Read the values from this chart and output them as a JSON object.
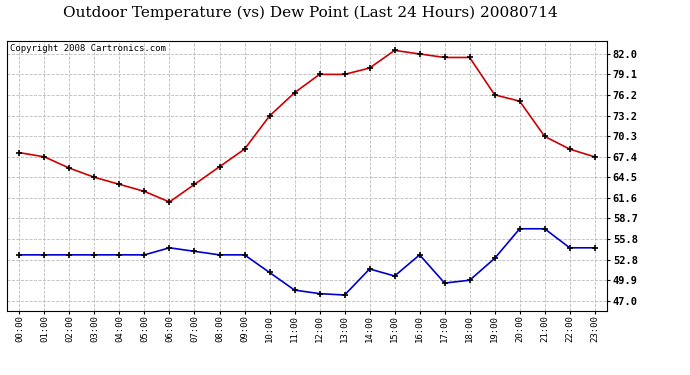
{
  "title": "Outdoor Temperature (vs) Dew Point (Last 24 Hours) 20080714",
  "copyright": "Copyright 2008 Cartronics.com",
  "hours": [
    "00:00",
    "01:00",
    "02:00",
    "03:00",
    "04:00",
    "05:00",
    "06:00",
    "07:00",
    "08:00",
    "09:00",
    "10:00",
    "11:00",
    "12:00",
    "13:00",
    "14:00",
    "15:00",
    "16:00",
    "17:00",
    "18:00",
    "19:00",
    "20:00",
    "21:00",
    "22:00",
    "23:00"
  ],
  "temp": [
    68.0,
    67.4,
    65.8,
    64.5,
    63.5,
    62.5,
    61.0,
    63.5,
    66.0,
    68.5,
    73.2,
    76.5,
    79.1,
    79.1,
    80.0,
    82.5,
    82.0,
    81.5,
    81.5,
    76.2,
    75.3,
    70.3,
    68.5,
    67.4
  ],
  "dew": [
    53.5,
    53.5,
    53.5,
    53.5,
    53.5,
    53.5,
    54.5,
    54.0,
    53.5,
    53.5,
    51.0,
    48.5,
    48.0,
    47.8,
    51.5,
    50.5,
    53.5,
    49.5,
    49.9,
    53.0,
    57.2,
    57.2,
    54.5,
    54.5
  ],
  "temp_color": "#cc0000",
  "dew_color": "#0000cc",
  "bg_color": "#ffffff",
  "plot_bg": "#ffffff",
  "grid_color": "#bbbbbb",
  "yticks": [
    47.0,
    49.9,
    52.8,
    55.8,
    58.7,
    61.6,
    64.5,
    67.4,
    70.3,
    73.2,
    76.2,
    79.1,
    82.0
  ],
  "ylim": [
    45.5,
    83.8
  ],
  "title_fontsize": 11,
  "copyright_fontsize": 6.5
}
